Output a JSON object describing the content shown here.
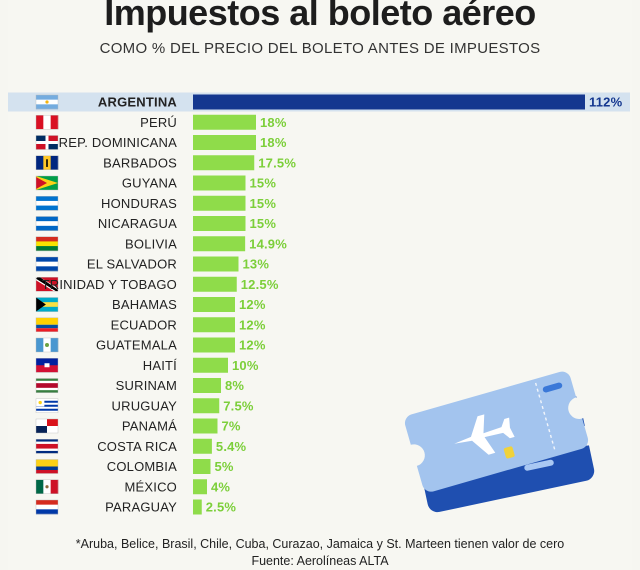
{
  "header": {
    "title": "Impuestos al boleto aéreo",
    "subtitle": "COMO % DEL PRECIO DEL BOLETO ANTES DE IMPUESTOS"
  },
  "footer": {
    "footnote": "*Aruba, Belice, Brasil, Chile, Cuba, Curazao, Jamaica y St. Marteen tienen valor de cero",
    "source": "Fuente: Aerolíneas ALTA"
  },
  "colors": {
    "highlight_bar": "#14378f",
    "bar": "#8fdc4a",
    "highlight_row": "#d4e2ef",
    "value_label": "#7ccf3a",
    "highlight_value_label": "#14378f"
  },
  "illustration": {
    "icon": "airplane-ticket-icon"
  },
  "chart_data": {
    "type": "bar",
    "orientation": "horizontal",
    "highlight": "ARGENTINA",
    "categories": [
      "ARGENTINA",
      "PERÚ",
      "REP. DOMINICANA",
      "BARBADOS",
      "GUYANA",
      "HONDURAS",
      "NICARAGUA",
      "BOLIVIA",
      "EL SALVADOR",
      "TRINIDAD Y TOBAGO",
      "BAHAMAS",
      "ECUADOR",
      "GUATEMALA",
      "HAITÍ",
      "SURINAM",
      "URUGUAY",
      "PANAMÁ",
      "COSTA RICA",
      "COLOMBIA",
      "MÉXICO",
      "PARAGUAY"
    ],
    "values": [
      112,
      18,
      18,
      17.5,
      15,
      15,
      15,
      14.9,
      13,
      12.5,
      12,
      12,
      12,
      10,
      8,
      7.5,
      7,
      5.4,
      5,
      4,
      2.5
    ],
    "value_labels": [
      "112%",
      "18%",
      "18%",
      "17.5%",
      "15%",
      "15%",
      "15%",
      "14.9%",
      "13%",
      "12.5%",
      "12%",
      "12%",
      "12%",
      "10%",
      "8%",
      "7.5%",
      "7%",
      "5.4%",
      "5%",
      "4%",
      "2.5%"
    ],
    "flags": [
      "argentina-flag-icon",
      "peru-flag-icon",
      "dominican-republic-flag-icon",
      "barbados-flag-icon",
      "guyana-flag-icon",
      "honduras-flag-icon",
      "nicaragua-flag-icon",
      "bolivia-flag-icon",
      "el-salvador-flag-icon",
      "trinidad-tobago-flag-icon",
      "bahamas-flag-icon",
      "ecuador-flag-icon",
      "guatemala-flag-icon",
      "haiti-flag-icon",
      "suriname-flag-icon",
      "uruguay-flag-icon",
      "panama-flag-icon",
      "costa-rica-flag-icon",
      "colombia-flag-icon",
      "mexico-flag-icon",
      "paraguay-flag-icon"
    ],
    "xlim": [
      0,
      112
    ],
    "grid": false,
    "legend": "none"
  }
}
